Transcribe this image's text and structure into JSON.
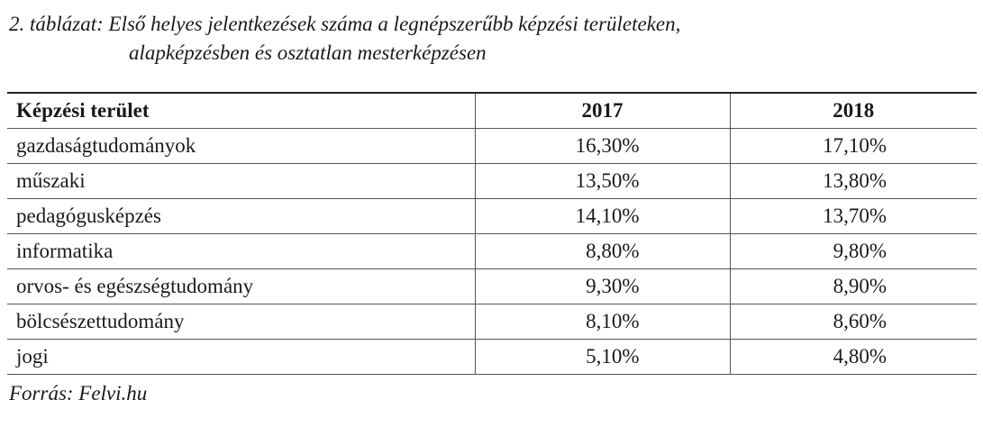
{
  "title": [
    "2. táblázat: Első helyes jelentkezések száma a legnépszerűbb képzési területeken,",
    "alapképzésben és osztatlan mesterképzésen"
  ],
  "table": {
    "header": [
      "Képzési terület",
      "2017",
      "2018"
    ],
    "rows": [
      [
        "gazdaságtudományok",
        "16,30%",
        "17,10%"
      ],
      [
        "műszaki",
        "13,50%",
        "13,80%"
      ],
      [
        "pedagógusképzés",
        "14,10%",
        "13,70%"
      ],
      [
        "informatika",
        "8,80%",
        "9,80%"
      ],
      [
        "orvos- és egészségtudomány",
        "9,30%",
        "8,90%"
      ],
      [
        "bölcsészettudomány",
        "8,10%",
        "8,60%"
      ],
      [
        "jogi",
        "5,10%",
        "4,80%"
      ]
    ]
  },
  "source": "Forrás: Felvi.hu"
}
